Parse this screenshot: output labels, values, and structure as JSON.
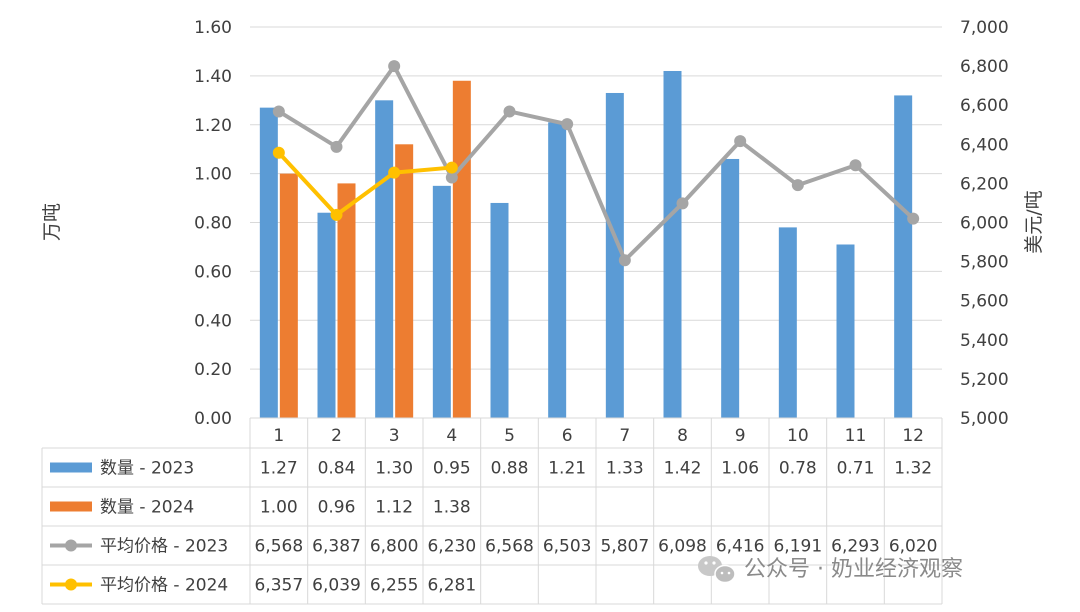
{
  "chart_data": {
    "type": "bar",
    "title": "",
    "categories": [
      "1",
      "2",
      "3",
      "4",
      "5",
      "6",
      "7",
      "8",
      "9",
      "10",
      "11",
      "12"
    ],
    "ylabel_left": "万吨",
    "ylabel_right": "美元/吨",
    "ylim_left": [
      0,
      1.6
    ],
    "ylim_right": [
      5000,
      7000
    ],
    "left_ticks": [
      "0.00",
      "0.20",
      "0.40",
      "0.60",
      "0.80",
      "1.00",
      "1.20",
      "1.40",
      "1.60"
    ],
    "right_ticks": [
      "5,000",
      "5,200",
      "5,400",
      "5,600",
      "5,800",
      "6,000",
      "6,200",
      "6,400",
      "6,600",
      "6,800",
      "7,000"
    ],
    "series": [
      {
        "name": "数量 - 2023",
        "kind": "bar",
        "axis": "left",
        "color": "#5b9bd5",
        "values": [
          1.27,
          0.84,
          1.3,
          0.95,
          0.88,
          1.21,
          1.33,
          1.42,
          1.06,
          0.78,
          0.71,
          1.32
        ],
        "labels": [
          "1.27",
          "0.84",
          "1.30",
          "0.95",
          "0.88",
          "1.21",
          "1.33",
          "1.42",
          "1.06",
          "0.78",
          "0.71",
          "1.32"
        ]
      },
      {
        "name": "数量 - 2024",
        "kind": "bar",
        "axis": "left",
        "color": "#ed7d31",
        "values": [
          1.0,
          0.96,
          1.12,
          1.38,
          null,
          null,
          null,
          null,
          null,
          null,
          null,
          null
        ],
        "labels": [
          "1.00",
          "0.96",
          "1.12",
          "1.38",
          "",
          "",
          "",
          "",
          "",
          "",
          "",
          ""
        ]
      },
      {
        "name": "平均价格 - 2023",
        "kind": "line",
        "axis": "right",
        "color": "#a5a5a5",
        "values": [
          6568,
          6387,
          6800,
          6230,
          6568,
          6503,
          5807,
          6098,
          6416,
          6191,
          6293,
          6020
        ],
        "labels": [
          "6,568",
          "6,387",
          "6,800",
          "6,230",
          "6,568",
          "6,503",
          "5,807",
          "6,098",
          "6,416",
          "6,191",
          "6,293",
          "6,020"
        ]
      },
      {
        "name": "平均价格 - 2024",
        "kind": "line",
        "axis": "right",
        "color": "#ffc000",
        "values": [
          6357,
          6039,
          6255,
          6281,
          null,
          null,
          null,
          null,
          null,
          null,
          null,
          null
        ],
        "labels": [
          "6,357",
          "6,039",
          "6,255",
          "6,281",
          "",
          "",
          "",
          "",
          "",
          "",
          "",
          ""
        ]
      }
    ]
  },
  "watermark": {
    "text": "公众号 · 奶业经济观察",
    "icon": "wechat-icon"
  }
}
